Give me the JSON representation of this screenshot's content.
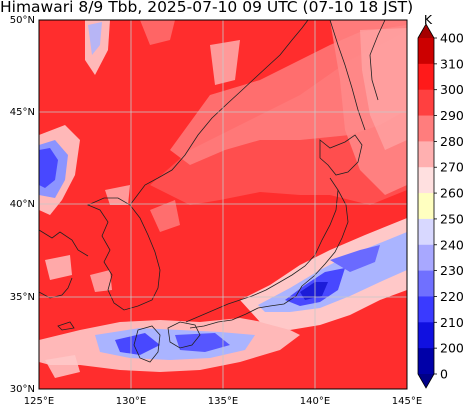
{
  "title": "Himawari 8/9 Tbb, 2025-07-10 09 UTC (07-10 18 JST)",
  "map": {
    "lat_labels": [
      "50°N",
      "45°N",
      "40°N",
      "35°N",
      "30°N"
    ],
    "lon_labels": [
      "125°E",
      "130°E",
      "135°E",
      "140°E",
      "145°E"
    ],
    "extent": {
      "lon": [
        125,
        145
      ],
      "lat": [
        30,
        50
      ]
    }
  },
  "colorbar": {
    "unit": "K",
    "tick_labels": [
      "400",
      "310",
      "300",
      "290",
      "280",
      "270",
      "260",
      "250",
      "240",
      "230",
      "220",
      "210",
      "200",
      "0"
    ],
    "colors": [
      "#a50000",
      "#cc0000",
      "#ff1a1a",
      "#ff4040",
      "#ff7d7d",
      "#ffb0b0",
      "#ffe0e0",
      "#ffffc0",
      "#d8d8ff",
      "#a8a8ff",
      "#7070ff",
      "#3a3aff",
      "#1010e0",
      "#0000a8",
      "#000088"
    ]
  },
  "palette": {
    "warm": "#ff2d2d",
    "deep_red": "#ee1c1c",
    "pink": "#ff8a8a",
    "light_pink": "#ffc8c8",
    "cloud_blue": "#4848ff",
    "pale_blue": "#aab4ff",
    "grid": "#c8c8c8",
    "coast": "#222222"
  }
}
